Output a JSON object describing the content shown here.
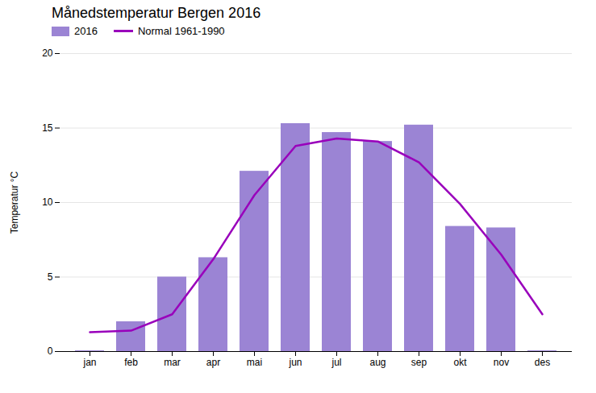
{
  "chart_data": {
    "type": "bar",
    "title": "Månedstemperatur Bergen 2016",
    "ylabel": "Temperatur °C",
    "categories": [
      "jan",
      "feb",
      "mar",
      "apr",
      "mai",
      "jun",
      "jul",
      "aug",
      "sep",
      "okt",
      "nov",
      "des"
    ],
    "series": [
      {
        "name": "2016",
        "type": "bar",
        "color": "#9B84D4",
        "values": [
          0.05,
          2.0,
          5.0,
          6.3,
          12.1,
          15.3,
          14.7,
          14.1,
          15.2,
          8.4,
          8.3,
          0.05
        ]
      },
      {
        "name": "Normal 1961-1990",
        "type": "line",
        "color": "#9900BB",
        "values": [
          1.3,
          1.4,
          2.5,
          6.2,
          10.5,
          13.8,
          14.3,
          14.1,
          12.7,
          9.9,
          6.5,
          2.5
        ]
      }
    ],
    "ylim": [
      0,
      20
    ],
    "yticks": [
      0,
      5,
      10,
      15,
      20
    ],
    "grid": true,
    "legend": "upper left"
  }
}
